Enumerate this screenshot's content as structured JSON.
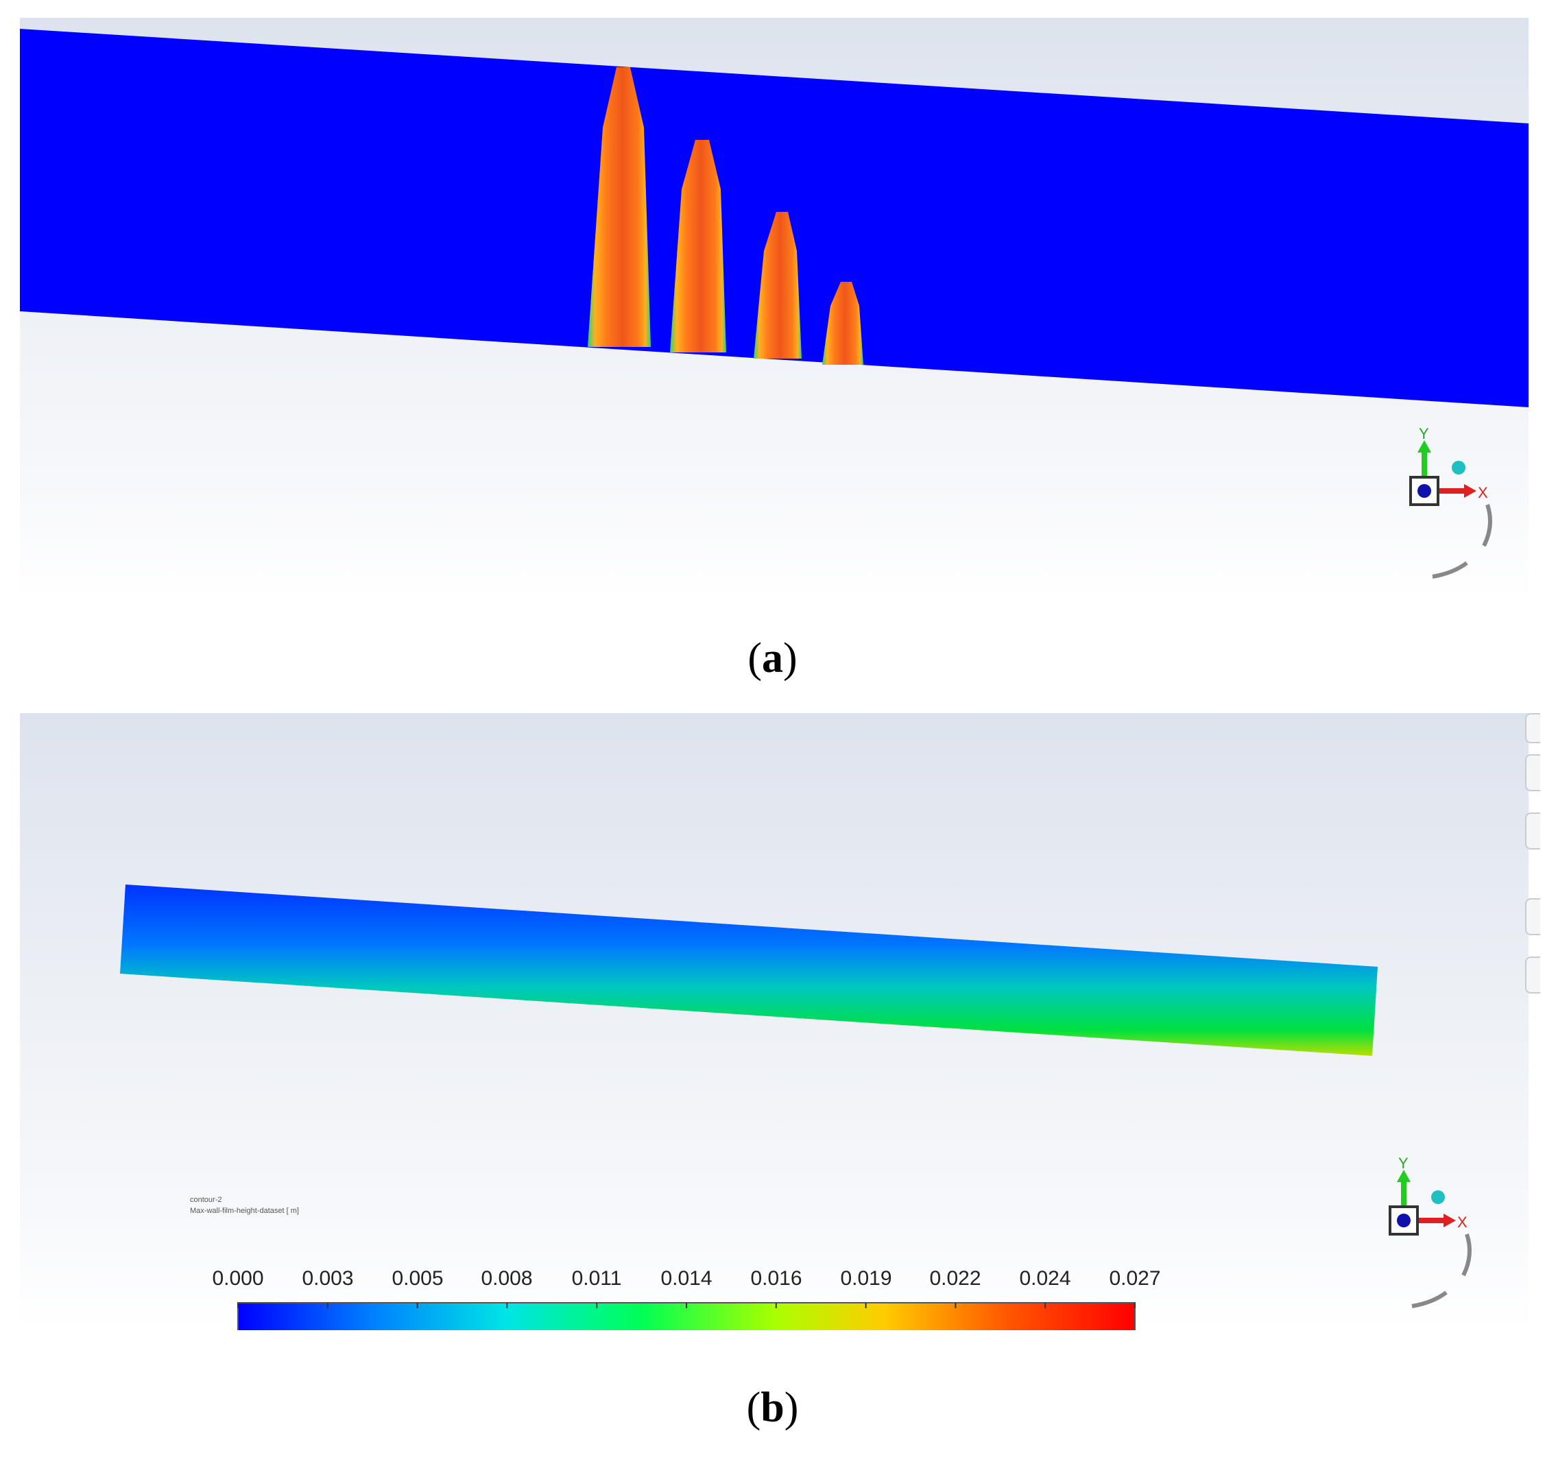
{
  "figure": {
    "panel_a": {
      "label": "a",
      "triad": {
        "y_axis": "Y",
        "x_axis": "X"
      }
    },
    "panel_b": {
      "label": "b",
      "legend": {
        "name": "contour-2",
        "quantity": "Max-wall-film-height-dataset [ m]",
        "ticks": [
          "0.000",
          "0.003",
          "0.005",
          "0.008",
          "0.011",
          "0.014",
          "0.016",
          "0.019",
          "0.022",
          "0.024",
          "0.027"
        ],
        "colormap": [
          "#0000ff",
          "#0080ff",
          "#00e5e5",
          "#00ff55",
          "#aaff00",
          "#ffcc00",
          "#ff5500",
          "#ff0000"
        ]
      },
      "triad": {
        "y_axis": "Y",
        "x_axis": "X"
      }
    }
  },
  "colors": {
    "film_background": "#0000ff",
    "jet_outer": "#ff7a1a",
    "jet_inner": "#e84a12",
    "jet_edge": "#38e080"
  }
}
